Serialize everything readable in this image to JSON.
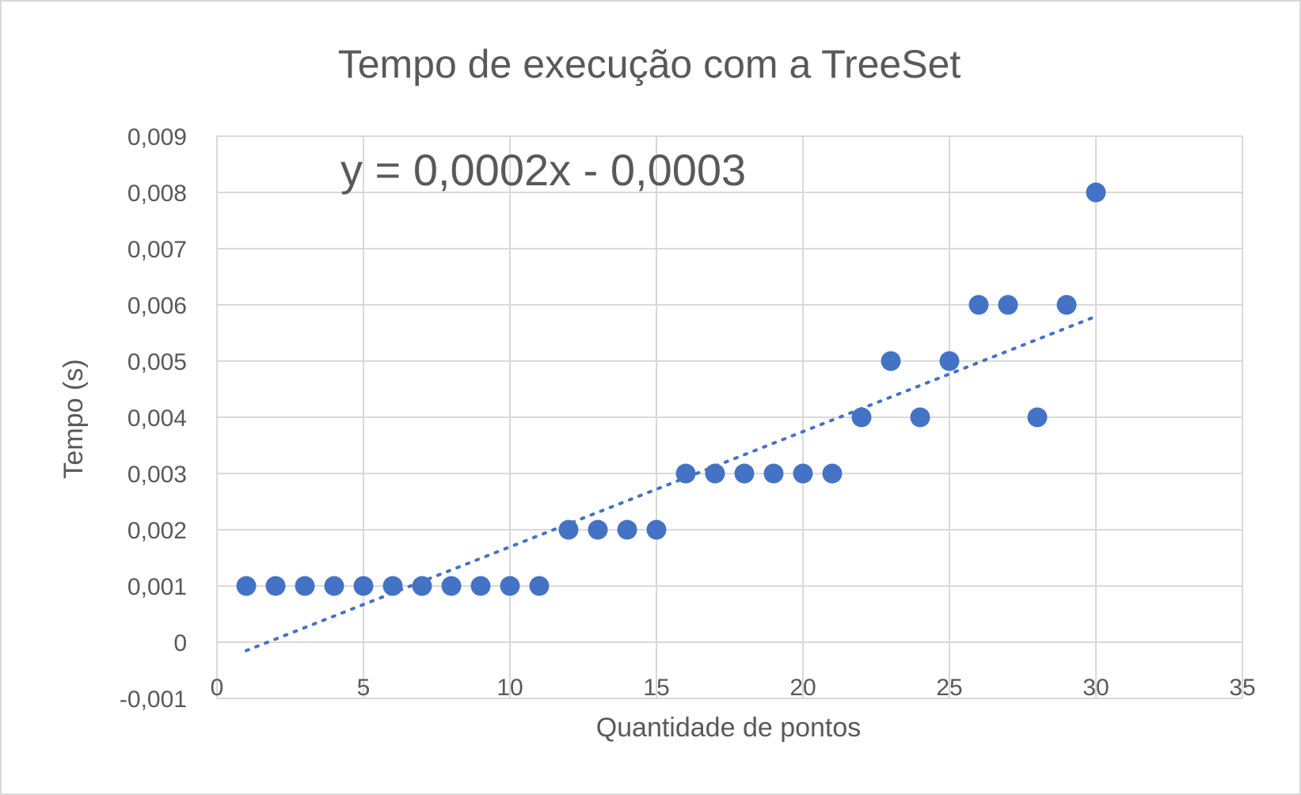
{
  "chart_data": {
    "type": "scatter",
    "title": "Tempo de execução com a TreeSet",
    "xlabel": "Quantidade de pontos",
    "ylabel": "Tempo (s)",
    "xlim": [
      0,
      35
    ],
    "ylim": [
      -0.001,
      0.009
    ],
    "x_ticks": [
      0,
      5,
      10,
      15,
      20,
      25,
      30,
      35
    ],
    "x_tick_labels": [
      "0",
      "5",
      "10",
      "15",
      "20",
      "25",
      "30",
      "35"
    ],
    "y_ticks": [
      -0.001,
      0,
      0.001,
      0.002,
      0.003,
      0.004,
      0.005,
      0.006,
      0.007,
      0.008,
      0.009
    ],
    "y_tick_labels": [
      "-0,001",
      "0",
      "0,001",
      "0,002",
      "0,003",
      "0,004",
      "0,005",
      "0,006",
      "0,007",
      "0,008",
      "0,009"
    ],
    "grid": true,
    "series": [
      {
        "x": [
          1,
          2,
          3,
          4,
          5,
          6,
          7,
          8,
          9,
          10,
          11,
          12,
          13,
          14,
          15,
          16,
          17,
          18,
          19,
          20,
          21,
          22,
          23,
          24,
          25,
          26,
          27,
          28,
          29,
          30
        ],
        "y": [
          0.001,
          0.001,
          0.001,
          0.001,
          0.001,
          0.001,
          0.001,
          0.001,
          0.001,
          0.001,
          0.001,
          0.002,
          0.002,
          0.002,
          0.002,
          0.003,
          0.003,
          0.003,
          0.003,
          0.003,
          0.003,
          0.004,
          0.005,
          0.004,
          0.005,
          0.006,
          0.006,
          0.004,
          0.006,
          0.008
        ],
        "color": "#4472c4"
      }
    ],
    "trendline": {
      "type": "linear",
      "equation": "y = 0,0002x - 0,0003",
      "x_range": [
        1,
        30
      ],
      "slope": 0.000205,
      "intercept": -0.000355,
      "color": "#4472c4"
    }
  }
}
